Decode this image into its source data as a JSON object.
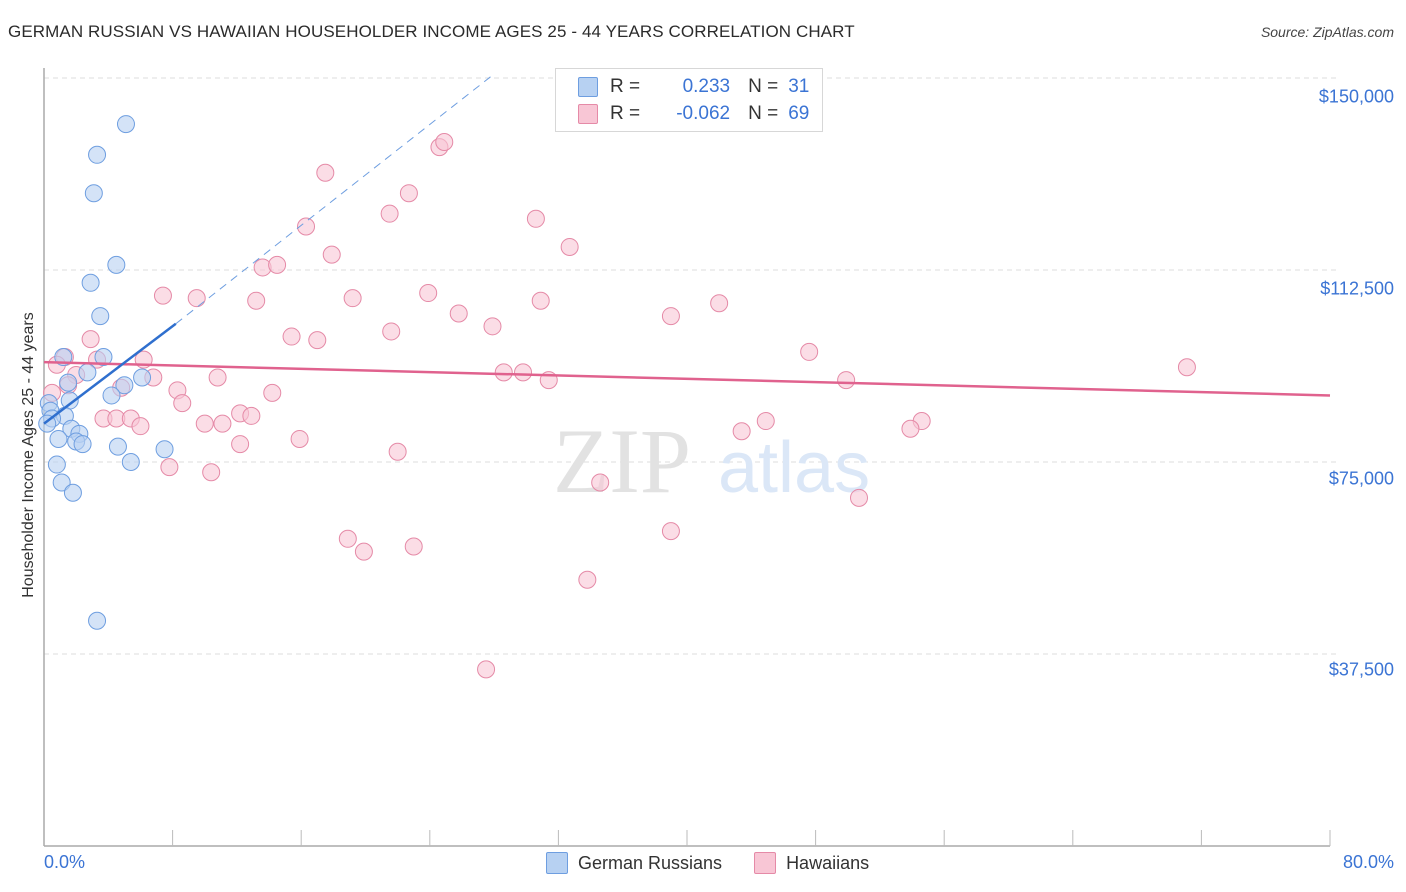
{
  "header": {
    "title": "GERMAN RUSSIAN VS HAWAIIAN HOUSEHOLDER INCOME AGES 25 - 44 YEARS CORRELATION CHART",
    "source": "Source: ZipAtlas.com"
  },
  "legend": {
    "rows": [
      {
        "r_label": "R =",
        "r_value": "0.233",
        "n_label": "N =",
        "n_value": "31"
      },
      {
        "r_label": "R =",
        "r_value": "-0.062",
        "n_label": "N =",
        "n_value": "69"
      }
    ],
    "bottom": [
      {
        "label": "German Russians"
      },
      {
        "label": "Hawaiians"
      }
    ]
  },
  "axes": {
    "ylabel": "Householder Income Ages 25 - 44 years",
    "yticks": [
      "$150,000",
      "$112,500",
      "$75,000",
      "$37,500"
    ],
    "xticks": [
      "0.0%",
      "80.0%"
    ]
  },
  "watermark": {
    "zip": "ZIP",
    "atlas": "atlas"
  },
  "colors": {
    "blue_fill": "#b7d1f2",
    "blue_stroke": "#6e9ee0",
    "blue_line": "#2f6fce",
    "pink_fill": "#f8c6d5",
    "pink_stroke": "#e58aa7",
    "pink_line": "#e0628e",
    "tick_text": "#3b74d4"
  },
  "chart_data": {
    "type": "scatter",
    "title": "German Russian vs Hawaiian Householder Income Ages 25 - 44 Years Correlation Chart",
    "xlabel": "",
    "ylabel": "Householder Income Ages 25 - 44 years",
    "xlim": [
      0,
      80
    ],
    "ylim": [
      0,
      155000
    ],
    "x_unit": "%",
    "yticks": [
      37500,
      75000,
      112500,
      150000
    ],
    "grid": "horizontal dashed",
    "legend_position": "top-center",
    "series": [
      {
        "name": "German Russians",
        "R": 0.233,
        "N": 31,
        "trend": {
          "x": [
            0,
            8.2
          ],
          "y": [
            82500,
            102000
          ],
          "extended_dashed_to": [
            28,
            150000
          ]
        },
        "points": [
          {
            "x": 5.1,
            "y": 141000
          },
          {
            "x": 3.3,
            "y": 135000
          },
          {
            "x": 3.1,
            "y": 127500
          },
          {
            "x": 4.5,
            "y": 113500
          },
          {
            "x": 2.9,
            "y": 110000
          },
          {
            "x": 3.5,
            "y": 103500
          },
          {
            "x": 1.2,
            "y": 95500
          },
          {
            "x": 3.7,
            "y": 95500
          },
          {
            "x": 2.7,
            "y": 92500
          },
          {
            "x": 6.1,
            "y": 91500
          },
          {
            "x": 1.5,
            "y": 90500
          },
          {
            "x": 5.0,
            "y": 90000
          },
          {
            "x": 4.2,
            "y": 88000
          },
          {
            "x": 1.6,
            "y": 87000
          },
          {
            "x": 0.3,
            "y": 86500
          },
          {
            "x": 0.4,
            "y": 85000
          },
          {
            "x": 1.3,
            "y": 84000
          },
          {
            "x": 0.5,
            "y": 83500
          },
          {
            "x": 0.2,
            "y": 82500
          },
          {
            "x": 1.7,
            "y": 81500
          },
          {
            "x": 2.2,
            "y": 80500
          },
          {
            "x": 0.9,
            "y": 79500
          },
          {
            "x": 2.0,
            "y": 79000
          },
          {
            "x": 2.4,
            "y": 78500
          },
          {
            "x": 4.6,
            "y": 78000
          },
          {
            "x": 7.5,
            "y": 77500
          },
          {
            "x": 5.4,
            "y": 75000
          },
          {
            "x": 0.8,
            "y": 74500
          },
          {
            "x": 1.1,
            "y": 71000
          },
          {
            "x": 1.8,
            "y": 69000
          },
          {
            "x": 3.3,
            "y": 44000
          }
        ]
      },
      {
        "name": "Hawaiians",
        "R": -0.062,
        "N": 69,
        "trend": {
          "x": [
            0,
            80
          ],
          "y": 94500,
          "y_end": 88000
        },
        "points": [
          {
            "x": 24.6,
            "y": 136500
          },
          {
            "x": 24.9,
            "y": 137500
          },
          {
            "x": 17.5,
            "y": 131500
          },
          {
            "x": 22.7,
            "y": 127500
          },
          {
            "x": 21.5,
            "y": 123500
          },
          {
            "x": 30.6,
            "y": 122500
          },
          {
            "x": 16.3,
            "y": 121000
          },
          {
            "x": 32.7,
            "y": 117000
          },
          {
            "x": 17.9,
            "y": 115500
          },
          {
            "x": 13.6,
            "y": 113000
          },
          {
            "x": 14.5,
            "y": 113500
          },
          {
            "x": 7.4,
            "y": 107500
          },
          {
            "x": 9.5,
            "y": 107000
          },
          {
            "x": 19.2,
            "y": 107000
          },
          {
            "x": 23.9,
            "y": 108000
          },
          {
            "x": 13.2,
            "y": 106500
          },
          {
            "x": 30.9,
            "y": 106500
          },
          {
            "x": 42.0,
            "y": 106000
          },
          {
            "x": 25.8,
            "y": 104000
          },
          {
            "x": 39.0,
            "y": 103500
          },
          {
            "x": 27.9,
            "y": 101500
          },
          {
            "x": 21.6,
            "y": 100500
          },
          {
            "x": 15.4,
            "y": 99500
          },
          {
            "x": 17.0,
            "y": 98800
          },
          {
            "x": 2.9,
            "y": 99000
          },
          {
            "x": 1.3,
            "y": 95500
          },
          {
            "x": 3.3,
            "y": 95000
          },
          {
            "x": 6.2,
            "y": 95000
          },
          {
            "x": 0.8,
            "y": 94000
          },
          {
            "x": 47.6,
            "y": 96500
          },
          {
            "x": 71.1,
            "y": 93500
          },
          {
            "x": 28.6,
            "y": 92500
          },
          {
            "x": 29.8,
            "y": 92500
          },
          {
            "x": 31.4,
            "y": 91000
          },
          {
            "x": 2.0,
            "y": 92000
          },
          {
            "x": 6.8,
            "y": 91500
          },
          {
            "x": 10.8,
            "y": 91500
          },
          {
            "x": 49.9,
            "y": 91000
          },
          {
            "x": 1.5,
            "y": 90000
          },
          {
            "x": 4.8,
            "y": 89500
          },
          {
            "x": 8.3,
            "y": 89000
          },
          {
            "x": 14.2,
            "y": 88500
          },
          {
            "x": 0.5,
            "y": 88500
          },
          {
            "x": 8.6,
            "y": 86500
          },
          {
            "x": 12.2,
            "y": 84500
          },
          {
            "x": 12.9,
            "y": 84000
          },
          {
            "x": 3.7,
            "y": 83500
          },
          {
            "x": 4.5,
            "y": 83500
          },
          {
            "x": 5.4,
            "y": 83500
          },
          {
            "x": 10.0,
            "y": 82500
          },
          {
            "x": 11.1,
            "y": 82500
          },
          {
            "x": 6.0,
            "y": 82000
          },
          {
            "x": 44.9,
            "y": 83000
          },
          {
            "x": 54.6,
            "y": 83000
          },
          {
            "x": 43.4,
            "y": 81000
          },
          {
            "x": 53.9,
            "y": 81500
          },
          {
            "x": 15.9,
            "y": 79500
          },
          {
            "x": 12.2,
            "y": 78500
          },
          {
            "x": 22.0,
            "y": 77000
          },
          {
            "x": 7.8,
            "y": 74000
          },
          {
            "x": 10.4,
            "y": 73000
          },
          {
            "x": 34.6,
            "y": 71000
          },
          {
            "x": 50.7,
            "y": 68000
          },
          {
            "x": 39.0,
            "y": 61500
          },
          {
            "x": 18.9,
            "y": 60000
          },
          {
            "x": 23.0,
            "y": 58500
          },
          {
            "x": 19.9,
            "y": 57500
          },
          {
            "x": 33.8,
            "y": 52000
          },
          {
            "x": 27.5,
            "y": 34500
          }
        ]
      }
    ]
  }
}
